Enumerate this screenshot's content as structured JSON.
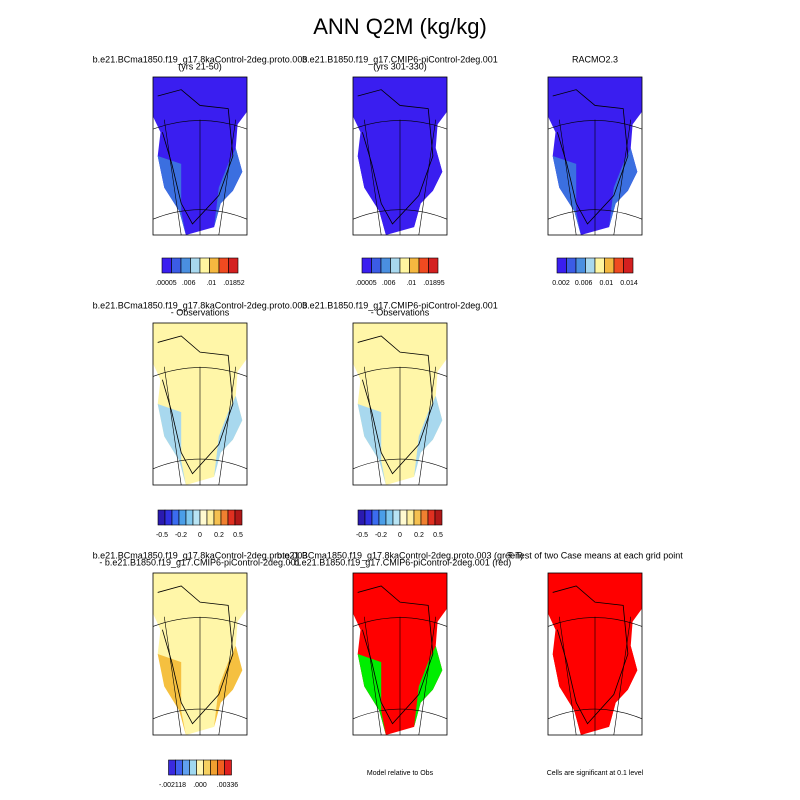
{
  "title": "ANN Q2M (kg/kg)",
  "panels": [
    {
      "title": "b.e21.BCma1850.f19_g17.8kaControl-2deg.proto.003",
      "subtitle": "(yrs 21-50)",
      "map_colors": [
        "#3a1ef0",
        "#3b6fe0"
      ],
      "colorbar": {
        "colors": [
          "#3a1ef0",
          "#3b5ce6",
          "#4a8fe0",
          "#a8d8ee",
          "#fff6a0",
          "#f5b840",
          "#f04a20",
          "#d42020"
        ],
        "labels": [
          ".00005",
          ".006",
          ".01",
          ".01852"
        ]
      }
    },
    {
      "title": "b.e21.B1850.f19_g17.CMIP6-piControl-2deg.001",
      "subtitle": "(yrs 301-330)",
      "map_colors": [
        "#3a1ef0",
        "#3a1ef0"
      ],
      "colorbar": {
        "colors": [
          "#3a1ef0",
          "#3b5ce6",
          "#4a8fe0",
          "#a8d8ee",
          "#fff6a0",
          "#f5b840",
          "#f04a20",
          "#d42020"
        ],
        "labels": [
          ".00005",
          ".006",
          ".01",
          ".01895"
        ]
      }
    },
    {
      "title": "RACMO2.3",
      "map_colors": [
        "#3a1ef0",
        "#3b6fe0"
      ],
      "colorbar": {
        "colors": [
          "#3a1ef0",
          "#3b5ce6",
          "#4a8fe0",
          "#a8d8ee",
          "#fff6a0",
          "#f5b840",
          "#f04a20",
          "#d42020"
        ],
        "labels": [
          "0.002",
          "0.006",
          "0.01",
          "0.014"
        ]
      }
    },
    {
      "title": "b.e21.BCma1850.f19_g17.8kaControl-2deg.proto.003",
      "subtitle": "- Observations",
      "map_colors": [
        "#fff6a8",
        "#a8d8ee"
      ],
      "colorbar": {
        "colors": [
          "#2a1ab0",
          "#3030e0",
          "#3b6cf0",
          "#4a9ee8",
          "#80c8ee",
          "#b8e4f4",
          "#fffad0",
          "#fff0a0",
          "#f5c050",
          "#f08030",
          "#e03020",
          "#b01818"
        ],
        "labels": [
          "-0.5",
          "-0.2",
          "0",
          "0.2",
          "0.5"
        ]
      }
    },
    {
      "title": "b.e21.B1850.f19_g17.CMIP6-piControl-2deg.001",
      "subtitle": "- Observations",
      "map_colors": [
        "#fff6a8",
        "#a8d8ee"
      ],
      "colorbar": {
        "colors": [
          "#2a1ab0",
          "#3030e0",
          "#3b6cf0",
          "#4a9ee8",
          "#80c8ee",
          "#b8e4f4",
          "#fffad0",
          "#fff0a0",
          "#f5c050",
          "#f08030",
          "#e03020",
          "#b01818"
        ],
        "labels": [
          "-0.5",
          "-0.2",
          "0",
          "0.2",
          "0.5"
        ]
      }
    },
    {
      "title": "b.e21.BCma1850.f19_g17.8kaControl-2deg.proto.003",
      "subtitle": "- b.e21.B1850.f19_g17.CMIP6-piControl-2deg.001",
      "map_colors": [
        "#fff6a8",
        "#f5c040"
      ],
      "colorbar": {
        "colors": [
          "#3a2ae0",
          "#4060f0",
          "#60a0f0",
          "#a0d8f0",
          "#fff6b0",
          "#f5d060",
          "#f0a030",
          "#f06020",
          "#e02020"
        ],
        "labels": [
          "-.002118",
          ".000",
          ".00336"
        ]
      }
    },
    {
      "title": "b.e21.BCma1850.f19_g17.8kaControl-2deg.proto.003 (green)",
      "subtitle": "- b.e21.B1850.f19_g17.CMIP6-piControl-2deg.001 (red)",
      "map_colors": [
        "#ff0000",
        "#00ee00"
      ],
      "footer": "Model relative to Obs"
    },
    {
      "title": "T-Test of two Case means at each grid point",
      "map_colors": [
        "#ff0000",
        "#ff0000"
      ],
      "footer": "Cells are significant at 0.1 level"
    }
  ]
}
